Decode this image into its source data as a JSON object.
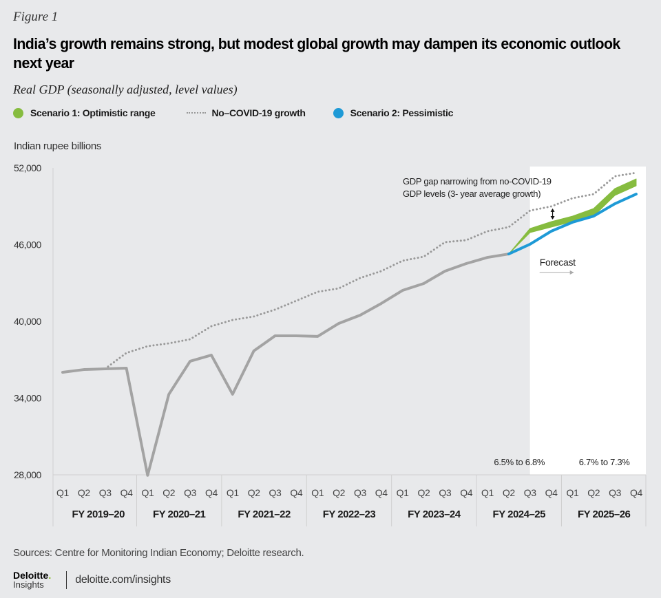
{
  "figure_label": "Figure 1",
  "title": "India’s growth remains strong, but modest global growth may dampen its economic outlook next year",
  "subtitle": "Real GDP (seasonally adjusted, level values)",
  "legend": [
    {
      "label": "Scenario 1: Optimistic range",
      "type": "dot",
      "color": "#86bc3f"
    },
    {
      "label": "No–COVID-19 growth",
      "type": "dotted-line",
      "color": "#999999"
    },
    {
      "label": "Scenario 2: Pessimistic",
      "type": "dot",
      "color": "#1e9ad6"
    }
  ],
  "unit_label": "Indian rupee billions",
  "sources": "Sources: Centre for Monitoring Indian Economy; Deloitte research.",
  "footer": {
    "logo_top": "Deloitte",
    "logo_dot": ".",
    "logo_bottom": "Insights",
    "url": "deloitte.com/insights"
  },
  "chart_data": {
    "type": "line",
    "title": "India’s growth remains strong, but modest global growth may dampen its economic outlook next year",
    "subtitle": "Real GDP (seasonally adjusted, level values)",
    "ylabel": "Indian rupee billions",
    "xlabel": "",
    "ylim": [
      28000,
      52000
    ],
    "yticks": [
      28000,
      34000,
      40000,
      46000,
      52000
    ],
    "ytick_labels": [
      "28,000",
      "34,000",
      "40,000",
      "46,000",
      "52,000"
    ],
    "grid": false,
    "legend_position": "top-left",
    "fiscal_years": [
      "FY 2019–20",
      "FY 2020–21",
      "FY 2021–22",
      "FY 2022–23",
      "FY 2023–24",
      "FY 2024–25",
      "FY 2025–26"
    ],
    "quarters": [
      "Q1",
      "Q2",
      "Q3",
      "Q4"
    ],
    "categories": [
      "FY 2019–20 Q1",
      "FY 2019–20 Q2",
      "FY 2019–20 Q3",
      "FY 2019–20 Q4",
      "FY 2020–21 Q1",
      "FY 2020–21 Q2",
      "FY 2020–21 Q3",
      "FY 2020–21 Q4",
      "FY 2021–22 Q1",
      "FY 2021–22 Q2",
      "FY 2021–22 Q3",
      "FY 2021–22 Q4",
      "FY 2022–23 Q1",
      "FY 2022–23 Q2",
      "FY 2022–23 Q3",
      "FY 2022–23 Q4",
      "FY 2023–24 Q1",
      "FY 2023–24 Q2",
      "FY 2023–24 Q3",
      "FY 2023–24 Q4",
      "FY 2024–25 Q1",
      "FY 2024–25 Q2",
      "FY 2024–25 Q3",
      "FY 2024–25 Q4",
      "FY 2025–26 Q1",
      "FY 2025–26 Q2",
      "FY 2025–26 Q3",
      "FY 2025–26 Q4"
    ],
    "series": [
      {
        "name": "Actual",
        "color": "#a3a3a3",
        "style": "solid",
        "values": [
          36020,
          36230,
          36290,
          36340,
          27960,
          34300,
          36880,
          37360,
          34300,
          37690,
          38870,
          38870,
          38820,
          39840,
          40480,
          41400,
          42420,
          42960,
          43930,
          44520,
          45000,
          45270,
          null,
          null,
          null,
          null,
          null,
          null
        ]
      },
      {
        "name": "No–COVID-19 growth",
        "color": "#999999",
        "style": "dotted",
        "values": [
          null,
          null,
          36290,
          37530,
          38060,
          38280,
          38600,
          39620,
          40110,
          40380,
          40920,
          41610,
          42310,
          42580,
          43390,
          43930,
          44740,
          45060,
          46190,
          46350,
          47050,
          47370,
          48660,
          48990,
          49630,
          49950,
          51350,
          51620
        ]
      },
      {
        "name": "Scenario 1: Optimistic range (low)",
        "color": "#86bc3f",
        "style": "band-low",
        "values": [
          null,
          null,
          null,
          null,
          null,
          null,
          null,
          null,
          null,
          null,
          null,
          null,
          null,
          null,
          null,
          null,
          null,
          null,
          null,
          null,
          null,
          45270,
          46940,
          47370,
          47800,
          48230,
          49850,
          50600
        ]
      },
      {
        "name": "Scenario 1: Optimistic range (high)",
        "color": "#86bc3f",
        "style": "band-high",
        "values": [
          null,
          null,
          null,
          null,
          null,
          null,
          null,
          null,
          null,
          null,
          null,
          null,
          null,
          null,
          null,
          null,
          null,
          null,
          null,
          null,
          null,
          45270,
          47260,
          47800,
          48230,
          48830,
          50390,
          51140
        ]
      },
      {
        "name": "Scenario 2: Pessimistic",
        "color": "#1e9ad6",
        "style": "solid",
        "values": [
          null,
          null,
          null,
          null,
          null,
          null,
          null,
          null,
          null,
          null,
          null,
          null,
          null,
          null,
          null,
          null,
          null,
          null,
          null,
          null,
          null,
          45270,
          46030,
          47050,
          47750,
          48230,
          49200,
          49950
        ]
      }
    ],
    "forecast_region": {
      "start": "FY 2024–25 Q3",
      "end": "FY 2025–26 Q4",
      "label": "Forecast"
    },
    "annotations": [
      {
        "text_lines": [
          "GDP gap narrowing from no-COVID-19",
          "GDP levels (3- year average growth)"
        ],
        "arrow_at": "FY 2024–25 Q4"
      },
      {
        "text": "6.5% to 6.8%",
        "fiscal_year": "FY 2024–25"
      },
      {
        "text": "6.7% to 7.3%",
        "fiscal_year": "FY 2025–26"
      }
    ]
  }
}
